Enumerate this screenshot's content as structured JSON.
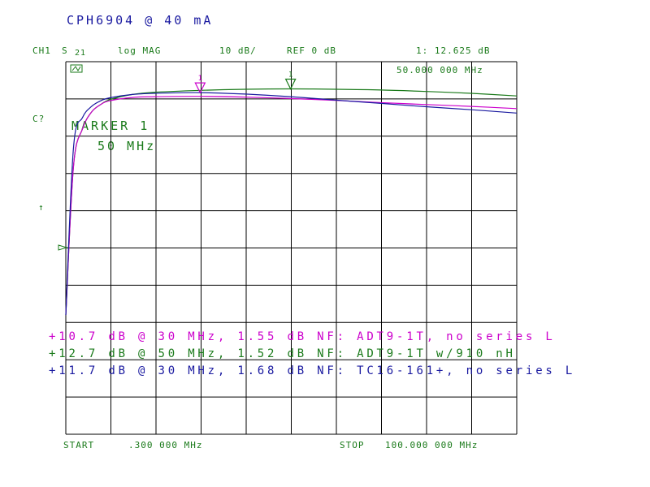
{
  "header": {
    "title": "CPH6904 @ 40 mA",
    "channel": "CH1",
    "param": "S",
    "param_sub": "21",
    "format": "log MAG",
    "scale": "10 dB/",
    "ref": "REF 0 dB",
    "marker_readout": "1: 12.625 dB",
    "marker_freq_readout": "50.000 000 MHz",
    "cal_flag": "C?",
    "stimulus_start_label": "START",
    "stimulus_start": ".300 000 MHz",
    "stimulus_stop_label": "STOP",
    "stimulus_stop": "100.000 000 MHz",
    "ref_arrow": "↑"
  },
  "marker_box": {
    "line1": "MARKER 1",
    "line2": "50 MHz"
  },
  "annotations": [
    {
      "text": "+10.7 dB @ 30 MHz, 1.55 dB NF: ADT9-1T, no series L",
      "color": "#cc00cc"
    },
    {
      "text": "+12.7 dB @ 50 MHz, 1.52 dB NF: ADT9-1T w/910 nH",
      "color": "#1a7a1a"
    },
    {
      "text": "+11.7 dB @ 30 MHz, 1.68 dB NF: TC16-161+, no series L",
      "color": "#1a1aa0"
    }
  ],
  "colors": {
    "grid": "#000000",
    "green": "#1a7a1a",
    "blue": "#1a1aa0",
    "magenta": "#cc00cc"
  },
  "chart_data": {
    "type": "line",
    "title": "CPH6904 @ 40 mA",
    "xlabel": "",
    "ylabel": "",
    "xlim": [
      0.3,
      100
    ],
    "ylim": [
      -80,
      20
    ],
    "grid": true,
    "series": [
      {
        "name": "ADT9-1T w/910 nH",
        "color": "#1a7a1a",
        "x": [
          0.3,
          2,
          4,
          6,
          8,
          10,
          15,
          20,
          30,
          40,
          50,
          60,
          70,
          80,
          90,
          100
        ],
        "y": [
          -48,
          -8,
          2,
          6.5,
          8.5,
          9.8,
          11.2,
          11.8,
          12.3,
          12.6,
          12.7,
          12.6,
          12.4,
          12.0,
          11.5,
          10.8
        ]
      },
      {
        "name": "ADT9-1T, no series L",
        "color": "#cc00cc",
        "x": [
          0.3,
          2,
          4,
          6,
          8,
          10,
          15,
          20,
          30,
          40,
          50,
          60,
          70,
          80,
          90,
          100
        ],
        "y": [
          -48,
          -8,
          2,
          6.5,
          8.5,
          9.5,
          10.4,
          10.6,
          10.7,
          10.5,
          10.1,
          9.6,
          9.0,
          8.5,
          8.0,
          7.4
        ]
      },
      {
        "name": "TC16-161+, no series L",
        "color": "#1a1aa0",
        "x": [
          0.3,
          2,
          4,
          6,
          8,
          10,
          15,
          20,
          30,
          40,
          50,
          60,
          70,
          80,
          90,
          100
        ],
        "y": [
          -48,
          -3,
          5,
          8.0,
          9.5,
          10.3,
          11.2,
          11.5,
          11.7,
          11.3,
          10.6,
          9.7,
          8.8,
          7.9,
          7.1,
          6.2
        ]
      }
    ],
    "markers": [
      {
        "label": "1",
        "x": 30,
        "y": 11.7
      },
      {
        "label": "1",
        "x": 50,
        "y": 12.7
      }
    ]
  }
}
